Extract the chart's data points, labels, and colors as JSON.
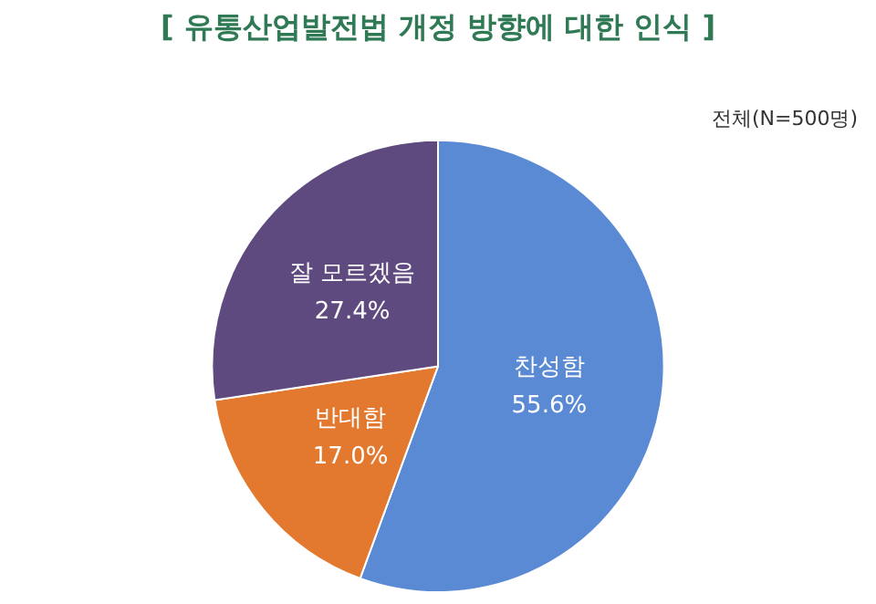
{
  "chart_data": {
    "type": "pie",
    "title": "[ 유통산업발전법 개정 방향에 대한 인식 ]",
    "subtitle": "전체(N=500명)",
    "categories": [
      "찬성함",
      "반대함",
      "잘 모르겠음"
    ],
    "values": [
      55.6,
      17.0,
      27.4
    ],
    "value_labels": [
      "55.6%",
      "17.0%",
      "27.4%"
    ],
    "colors": [
      "#5b8ad4",
      "#e2792e",
      "#5f4a80"
    ],
    "legend": false
  }
}
